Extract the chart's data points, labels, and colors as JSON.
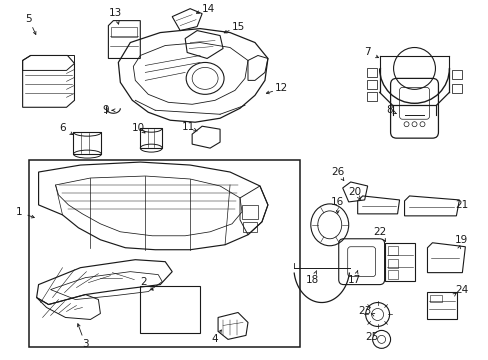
{
  "bg_color": "#ffffff",
  "line_color": "#1a1a1a",
  "fig_width": 4.89,
  "fig_height": 3.6,
  "dpi": 100
}
